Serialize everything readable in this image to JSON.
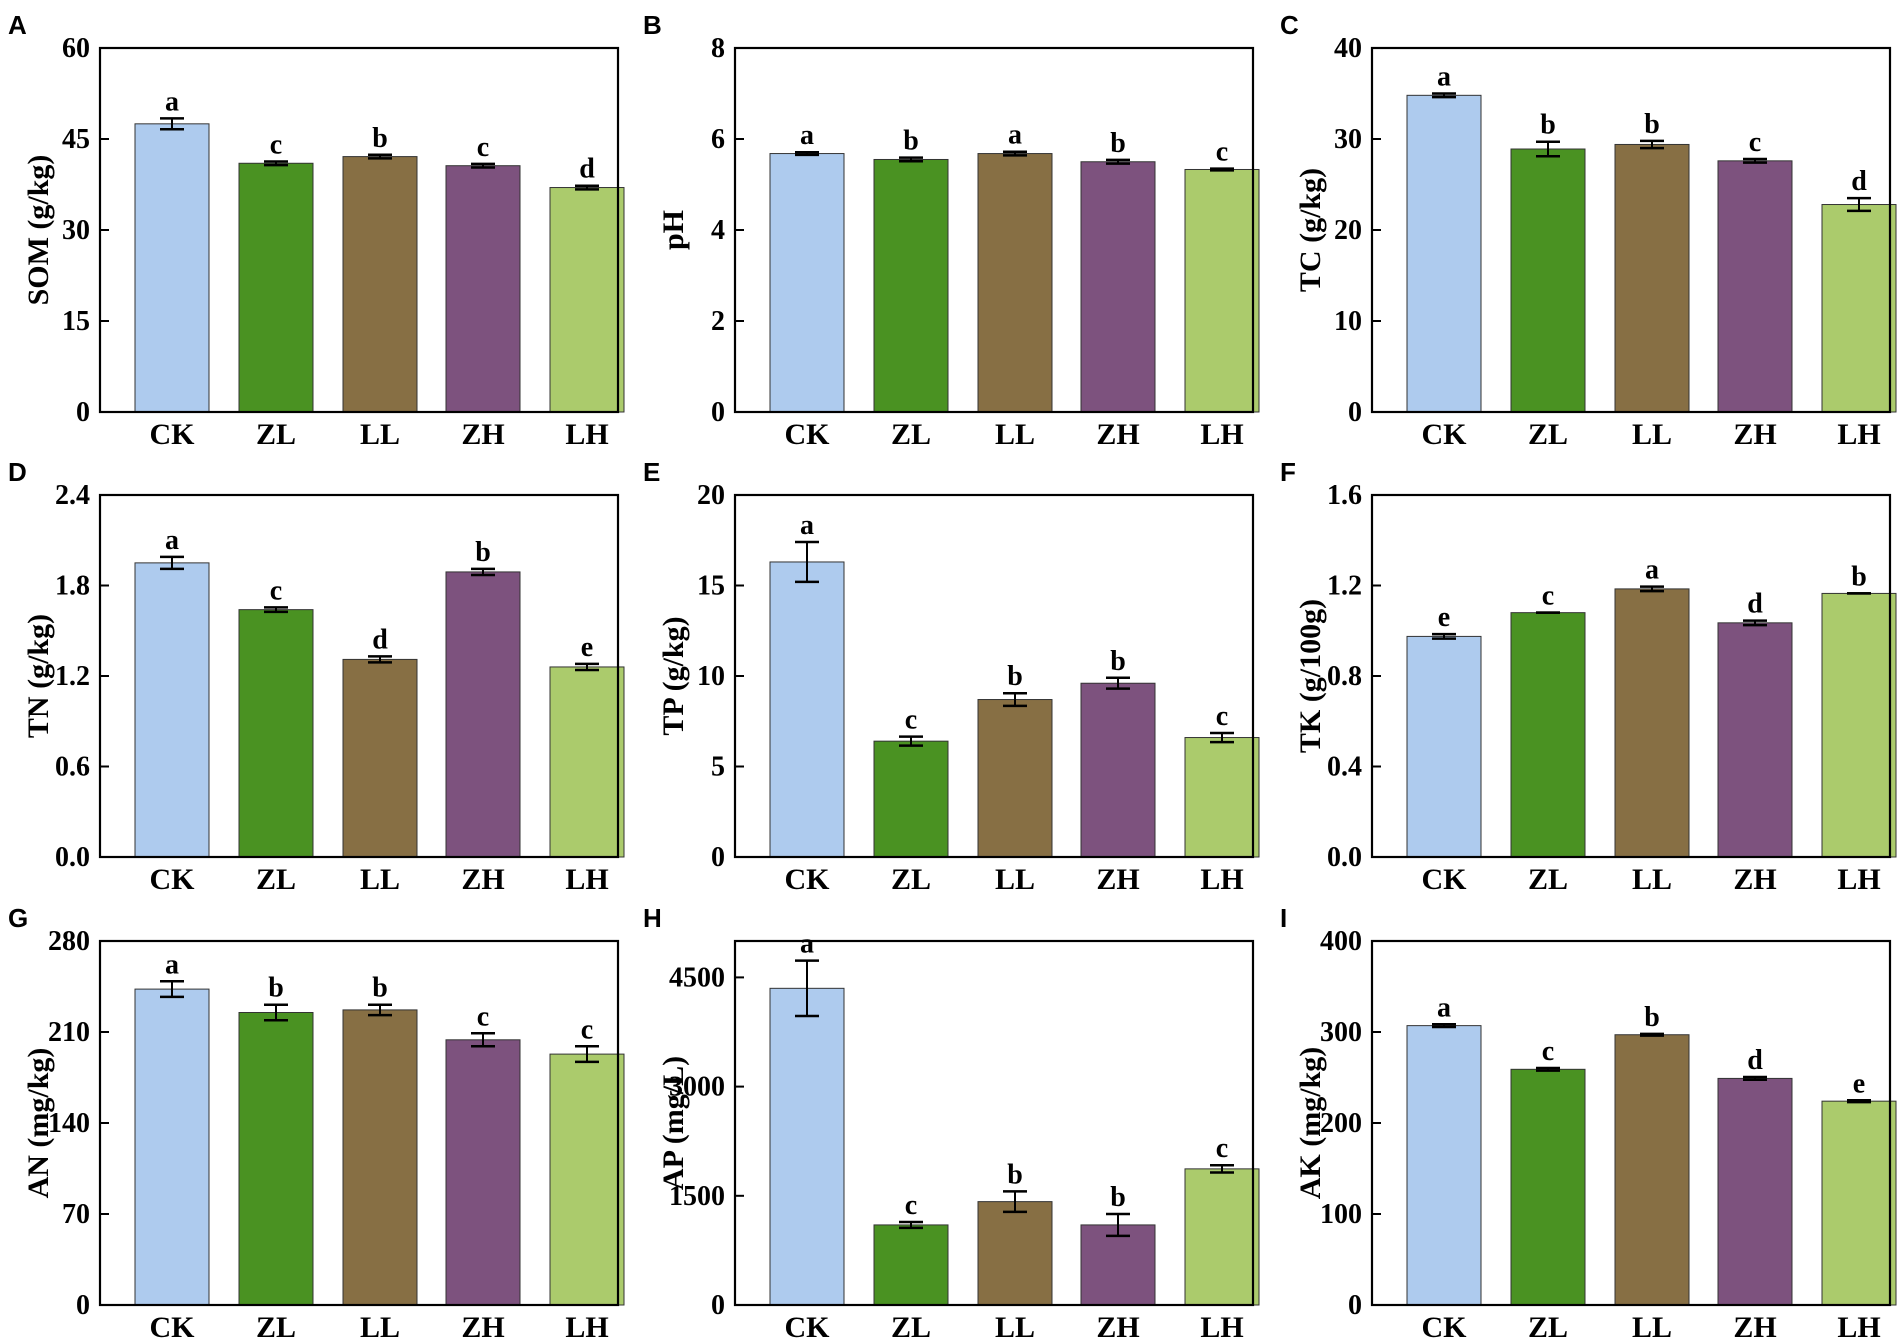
{
  "colors": {
    "CK": "#aecbee",
    "ZL": "#4a9222",
    "LL": "#876f44",
    "ZH": "#7d527e",
    "LH": "#abcb6c",
    "axis": "#000000",
    "bar_edge": "#333333"
  },
  "chart_data": [
    {
      "letter": "A",
      "type": "bar",
      "ylabel": "SOM (g/kg)",
      "ylim": [
        0,
        60
      ],
      "yticks": [
        "0",
        "15",
        "30",
        "45",
        "60"
      ],
      "categories": [
        "CK",
        "ZL",
        "LL",
        "ZH",
        "LH"
      ],
      "values": [
        47.5,
        41.0,
        42.1,
        40.6,
        37.0
      ],
      "errors": [
        0.9,
        0.3,
        0.3,
        0.3,
        0.3
      ],
      "significance": [
        "a",
        "c",
        "b",
        "c",
        "d"
      ]
    },
    {
      "letter": "B",
      "type": "bar",
      "ylabel": "pH",
      "ylim": [
        0,
        8
      ],
      "yticks": [
        "0",
        "2",
        "4",
        "6",
        "8"
      ],
      "categories": [
        "CK",
        "ZL",
        "LL",
        "ZH",
        "LH"
      ],
      "values": [
        5.68,
        5.55,
        5.68,
        5.5,
        5.33
      ],
      "errors": [
        0.03,
        0.04,
        0.04,
        0.04,
        0.02
      ],
      "significance": [
        "a",
        "b",
        "a",
        "b",
        "c"
      ]
    },
    {
      "letter": "C",
      "type": "bar",
      "ylabel": "TC (g/kg)",
      "ylim": [
        0,
        40
      ],
      "yticks": [
        "0",
        "10",
        "20",
        "30",
        "40"
      ],
      "categories": [
        "CK",
        "ZL",
        "LL",
        "ZH",
        "LH"
      ],
      "values": [
        34.8,
        28.9,
        29.4,
        27.6,
        22.8
      ],
      "errors": [
        0.2,
        0.8,
        0.4,
        0.2,
        0.7
      ],
      "significance": [
        "a",
        "b",
        "b",
        "c",
        "d"
      ]
    },
    {
      "letter": "D",
      "type": "bar",
      "ylabel": "TN (g/kg)",
      "ylim": [
        0,
        2.4
      ],
      "yticks": [
        "0.0",
        "0.6",
        "1.2",
        "1.8",
        "2.4"
      ],
      "categories": [
        "CK",
        "ZL",
        "LL",
        "ZH",
        "LH"
      ],
      "values": [
        1.95,
        1.64,
        1.31,
        1.89,
        1.26
      ],
      "errors": [
        0.04,
        0.015,
        0.02,
        0.02,
        0.02
      ],
      "significance": [
        "a",
        "c",
        "d",
        "b",
        "e"
      ]
    },
    {
      "letter": "E",
      "type": "bar",
      "ylabel": "TP (g/kg)",
      "ylim": [
        0,
        20
      ],
      "yticks": [
        "0",
        "5",
        "10",
        "15",
        "20"
      ],
      "categories": [
        "CK",
        "ZL",
        "LL",
        "ZH",
        "LH"
      ],
      "values": [
        16.3,
        6.4,
        8.7,
        9.6,
        6.6
      ],
      "errors": [
        1.1,
        0.25,
        0.35,
        0.3,
        0.25
      ],
      "significance": [
        "a",
        "c",
        "b",
        "b",
        "c"
      ]
    },
    {
      "letter": "F",
      "type": "bar",
      "ylabel": "TK (g/100g)",
      "ylim": [
        0,
        1.6
      ],
      "yticks": [
        "0.0",
        "0.4",
        "0.8",
        "1.2",
        "1.6"
      ],
      "categories": [
        "CK",
        "ZL",
        "LL",
        "ZH",
        "LH"
      ],
      "values": [
        0.975,
        1.08,
        1.185,
        1.035,
        1.165
      ],
      "errors": [
        0.01,
        0.0,
        0.01,
        0.01,
        0.0
      ],
      "significance": [
        "e",
        "c",
        "a",
        "d",
        "b"
      ]
    },
    {
      "letter": "G",
      "type": "bar",
      "ylabel": "AN (mg/kg)",
      "ylim": [
        0,
        280
      ],
      "yticks": [
        "0",
        "70",
        "140",
        "210",
        "280"
      ],
      "categories": [
        "CK",
        "ZL",
        "LL",
        "ZH",
        "LH"
      ],
      "values": [
        243,
        225,
        227,
        204,
        193
      ],
      "errors": [
        6,
        6,
        4,
        5,
        6
      ],
      "significance": [
        "a",
        "b",
        "b",
        "c",
        "c"
      ]
    },
    {
      "letter": "H",
      "type": "bar",
      "ylabel": "AP (mg/L)",
      "ylim": [
        0,
        5000
      ],
      "yticks": [
        "0",
        "1500",
        "3000",
        "4500"
      ],
      "categories": [
        "CK",
        "ZL",
        "LL",
        "ZH",
        "LH"
      ],
      "values": [
        4350,
        1100,
        1420,
        1100,
        1870
      ],
      "errors": [
        380,
        40,
        140,
        150,
        50
      ],
      "significance": [
        "a",
        "c",
        "b",
        "b",
        "c"
      ]
    },
    {
      "letter": "I",
      "type": "bar",
      "ylabel": "AK (mg/kg)",
      "ylim": [
        0,
        400
      ],
      "yticks": [
        "0",
        "100",
        "200",
        "300",
        "400"
      ],
      "categories": [
        "CK",
        "ZL",
        "LL",
        "ZH",
        "LH"
      ],
      "values": [
        307,
        259,
        297,
        249,
        224
      ],
      "errors": [
        1.5,
        1.5,
        1,
        1.5,
        1
      ],
      "significance": [
        "a",
        "c",
        "b",
        "d",
        "e"
      ]
    }
  ]
}
